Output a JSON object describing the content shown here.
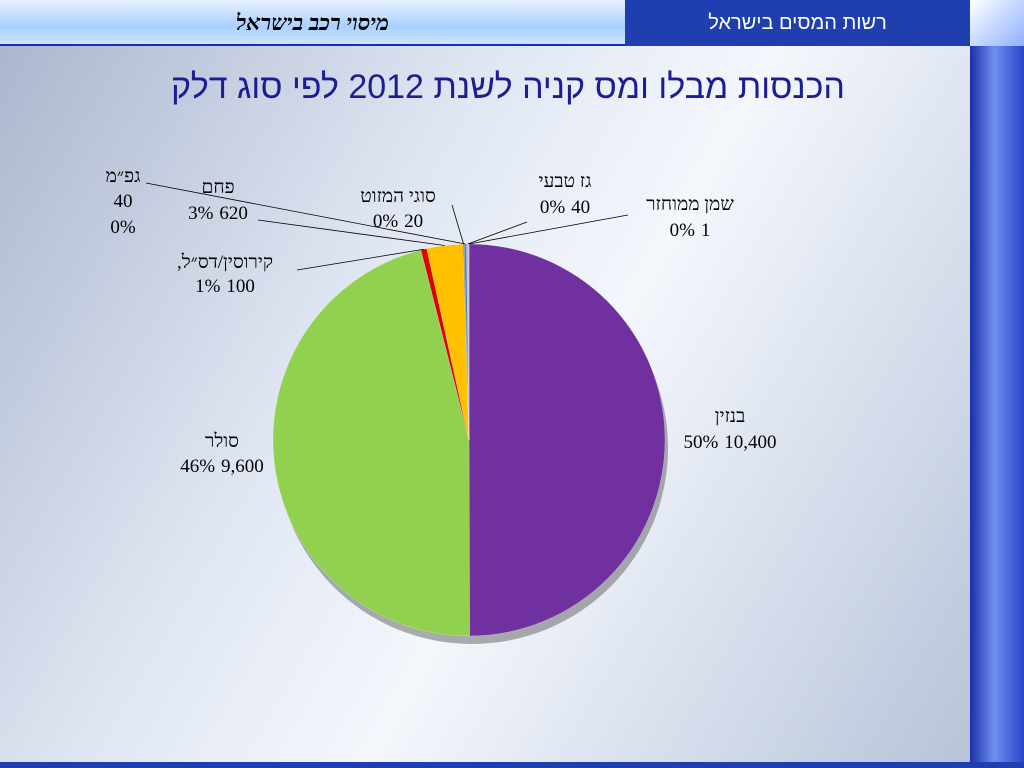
{
  "header": {
    "organization": "רשות המסים בישראל",
    "topic": "מיסוי רכב בישראל"
  },
  "chart_data": {
    "type": "pie",
    "title": "הכנסות מבלו ומס קניה לשנת 2012 לפי סוג דלק",
    "categories": [
      "בנזין",
      "סולר",
      "קירוסין/דס״ל,",
      "פחם",
      "סוגי המזוט",
      "גפ״מ",
      "גז טבעי",
      "שמן ממוחזר"
    ],
    "values": [
      10400,
      9600,
      100,
      620,
      20,
      40,
      40,
      1
    ],
    "value_labels": [
      "10,400",
      "9,600",
      "100",
      "620",
      "20",
      "40",
      "40",
      "1"
    ],
    "percents": [
      50,
      46,
      1,
      3,
      0,
      0,
      0,
      0
    ],
    "percent_labels": [
      "50%",
      "46%",
      "1%",
      "3%",
      "0%",
      "0%",
      "0%",
      "0%"
    ],
    "colors": [
      "#7030a0",
      "#92d050",
      "#e00000",
      "#ffc000",
      "#7f7f7f",
      "#4f81bd",
      "#c0c0c0",
      "#1f497d"
    ]
  }
}
